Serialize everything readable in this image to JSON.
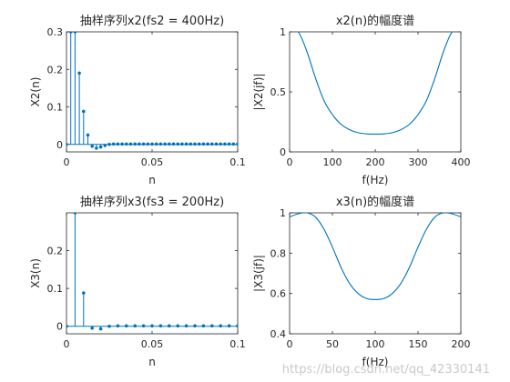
{
  "chart_data": [
    {
      "type": "stem",
      "title": "抽样序列x2(fs2 = 400Hz)",
      "xlabel": "n",
      "ylabel": "X2(n)",
      "xlim": [
        0,
        0.1
      ],
      "ylim": [
        -0.02,
        0.3
      ],
      "xticks": [
        "0",
        "0.05",
        "0.1"
      ],
      "yticks": [
        "0",
        "0.1",
        "0.2",
        "0.3"
      ],
      "xtick_values": [
        0,
        0.05,
        0.1
      ],
      "ytick_values": [
        0,
        0.1,
        0.2,
        0.3
      ],
      "x": [
        0,
        0.0025,
        0.005,
        0.0075,
        0.01,
        0.0125,
        0.015,
        0.0175,
        0.02,
        0.0225,
        0.025,
        0.0275,
        0.03,
        0.0325,
        0.035,
        0.0375,
        0.04,
        0.0425,
        0.045,
        0.0475,
        0.05,
        0.0525,
        0.055,
        0.0575,
        0.06,
        0.0625,
        0.065,
        0.0675,
        0.07,
        0.0725,
        0.075,
        0.0775,
        0.08,
        0.0825,
        0.085,
        0.0875,
        0.09,
        0.0925,
        0.095,
        0.0975,
        0.1
      ],
      "values": [
        0,
        0.3,
        0.3,
        0.19,
        0.088,
        0.025,
        -0.005,
        -0.01,
        -0.007,
        -0.003,
        0,
        0.001,
        0.001,
        0.001,
        0.001,
        0.001,
        0.001,
        0.001,
        0.001,
        0.001,
        0.001,
        0.001,
        0.001,
        0.001,
        0.001,
        0.001,
        0.001,
        0.001,
        0.001,
        0.001,
        0.001,
        0.001,
        0.001,
        0.001,
        0.001,
        0.001,
        0.001,
        0.001,
        0.001,
        0.001,
        0.001
      ]
    },
    {
      "type": "line",
      "title": "x2(n)的幅度谱",
      "xlabel": "f(Hz)",
      "ylabel": "|X2(jf)|",
      "xlim": [
        0,
        400
      ],
      "ylim": [
        0,
        1
      ],
      "xticks": [
        "0",
        "100",
        "200",
        "300",
        "400"
      ],
      "yticks": [
        "0",
        "0.5",
        "1"
      ],
      "xtick_values": [
        0,
        100,
        200,
        300,
        400
      ],
      "ytick_values": [
        0,
        0.5,
        1
      ],
      "x": [
        0,
        20,
        40,
        60,
        80,
        100,
        120,
        140,
        160,
        180,
        200,
        220,
        240,
        260,
        280,
        300,
        320,
        340,
        360,
        380,
        400
      ],
      "values": [
        1,
        1,
        0.84,
        0.62,
        0.43,
        0.31,
        0.23,
        0.185,
        0.16,
        0.15,
        0.148,
        0.15,
        0.16,
        0.185,
        0.23,
        0.31,
        0.43,
        0.62,
        0.84,
        1,
        1
      ]
    },
    {
      "type": "stem",
      "title": "抽样序列x3(fs3 = 200Hz)",
      "xlabel": "n",
      "ylabel": "X3(n)",
      "xlim": [
        0,
        0.1
      ],
      "ylim": [
        -0.02,
        0.3
      ],
      "xticks": [
        "0",
        "0.05",
        "0.1"
      ],
      "yticks": [
        "0",
        "0.1",
        "0.2"
      ],
      "xtick_values": [
        0,
        0.05,
        0.1
      ],
      "ytick_values": [
        0,
        0.1,
        0.2
      ],
      "x": [
        0,
        0.005,
        0.01,
        0.015,
        0.02,
        0.025,
        0.03,
        0.035,
        0.04,
        0.045,
        0.05,
        0.055,
        0.06,
        0.065,
        0.07,
        0.075,
        0.08,
        0.085,
        0.09,
        0.095,
        0.1
      ],
      "values": [
        0,
        0.3,
        0.088,
        -0.005,
        -0.007,
        0,
        0.001,
        0.001,
        0.001,
        0.001,
        0.001,
        0.001,
        0.001,
        0.001,
        0.001,
        0.001,
        0.001,
        0.001,
        0.001,
        0.001,
        0.001
      ]
    },
    {
      "type": "line",
      "title": "x3(n)的幅度谱",
      "xlabel": "f(Hz)",
      "ylabel": "|X3(jf)|",
      "xlim": [
        0,
        200
      ],
      "ylim": [
        0.4,
        1
      ],
      "xticks": [
        "0",
        "50",
        "100",
        "150",
        "200"
      ],
      "yticks": [
        "0.4",
        "0.6",
        "0.8",
        "1"
      ],
      "xtick_values": [
        0,
        50,
        100,
        150,
        200
      ],
      "ytick_values": [
        0.4,
        0.6,
        0.8,
        1
      ],
      "x": [
        0,
        10,
        20,
        30,
        40,
        50,
        60,
        70,
        80,
        90,
        100,
        110,
        120,
        130,
        140,
        150,
        160,
        170,
        180,
        190,
        200
      ],
      "values": [
        0.98,
        0.995,
        1,
        0.98,
        0.92,
        0.83,
        0.73,
        0.65,
        0.6,
        0.575,
        0.57,
        0.575,
        0.6,
        0.65,
        0.73,
        0.83,
        0.92,
        0.98,
        1,
        0.995,
        0.98
      ]
    }
  ],
  "watermark": "https://blog.csdn.net/qq_42330141",
  "colors": {
    "series": "#0072BD",
    "axis": "#262626"
  }
}
